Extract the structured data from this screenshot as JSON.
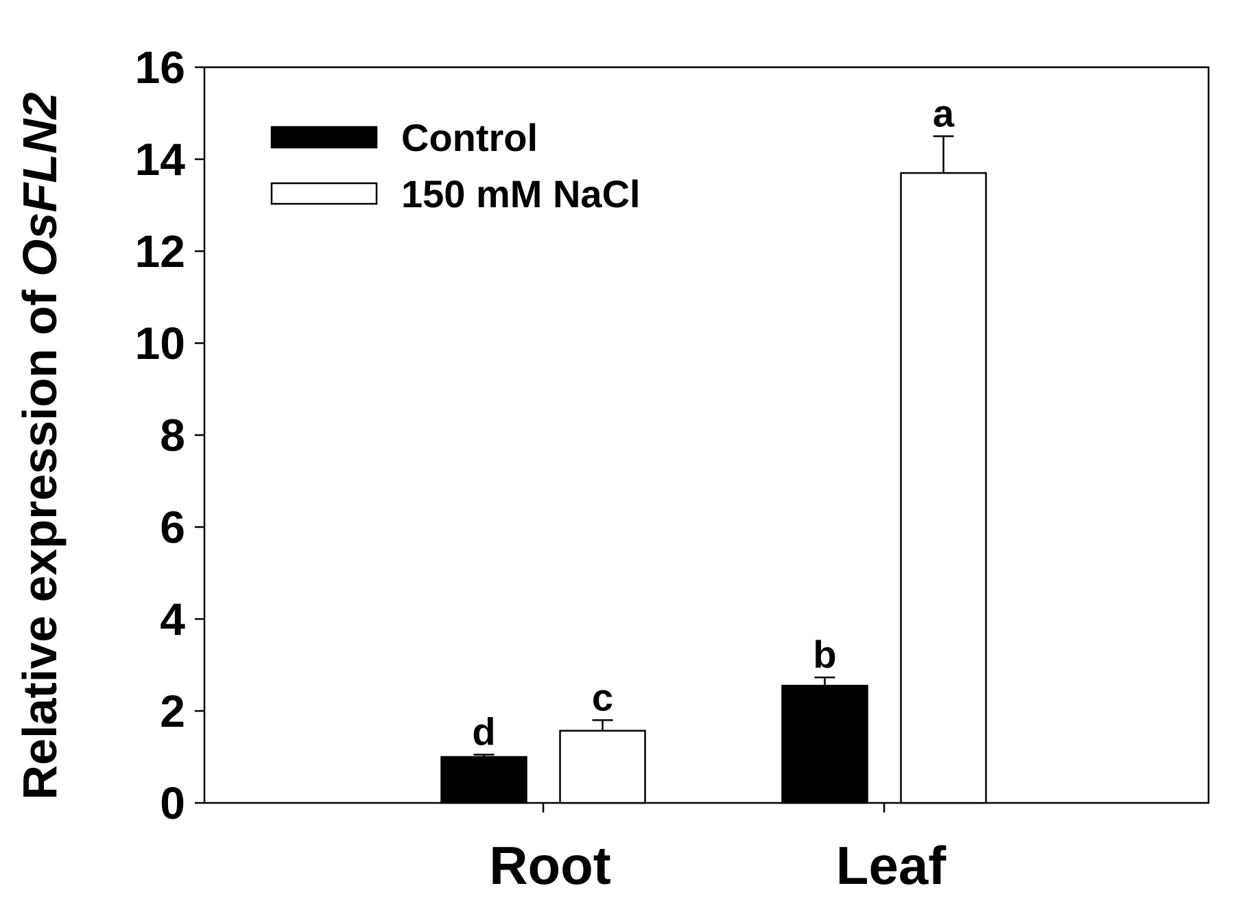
{
  "chart_data": {
    "type": "bar",
    "title": "",
    "xlabel": "",
    "ylabel": {
      "prefix": "Relative expression of ",
      "gene": "OsFLN2"
    },
    "ylim": [
      0,
      16
    ],
    "yticks": [
      0,
      2,
      4,
      6,
      8,
      10,
      12,
      14,
      16
    ],
    "categories": [
      "Root",
      "Leaf"
    ],
    "series": [
      {
        "name": "Control",
        "fill": "#000000",
        "values": [
          1.0,
          2.55
        ],
        "errors": [
          0.05,
          0.18
        ],
        "significance": [
          "d",
          "b"
        ]
      },
      {
        "name": "150 mM NaCl",
        "fill": "#ffffff",
        "values": [
          1.57,
          13.7
        ],
        "errors": [
          0.23,
          0.8
        ],
        "significance": [
          "c",
          "a"
        ]
      }
    ],
    "legend_position": "top-left",
    "grid": false
  }
}
